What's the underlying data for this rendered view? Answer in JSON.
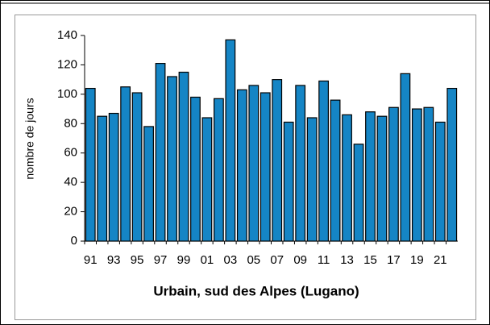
{
  "chart_data": {
    "type": "bar",
    "title": "Urbain, sud des Alpes (Lugano)",
    "y_label": "nombre de jours",
    "categories": [
      "91",
      null,
      "93",
      null,
      "95",
      null,
      "97",
      null,
      "99",
      null,
      "01",
      null,
      "03",
      null,
      "05",
      null,
      "07",
      null,
      "09",
      null,
      "11",
      null,
      "13",
      null,
      "15",
      null,
      "17",
      null,
      "19",
      null,
      "21",
      null
    ],
    "values": [
      104,
      85,
      87,
      105,
      101,
      78,
      121,
      112,
      115,
      98,
      84,
      97,
      137,
      103,
      106,
      101,
      110,
      81,
      106,
      84,
      109,
      96,
      86,
      66,
      88,
      85,
      91,
      114,
      90,
      91,
      81,
      104
    ],
    "color": "#1585c5",
    "ylim": [
      0,
      140
    ],
    "yticks": [
      0,
      20,
      40,
      60,
      80,
      100,
      120,
      140
    ]
  }
}
